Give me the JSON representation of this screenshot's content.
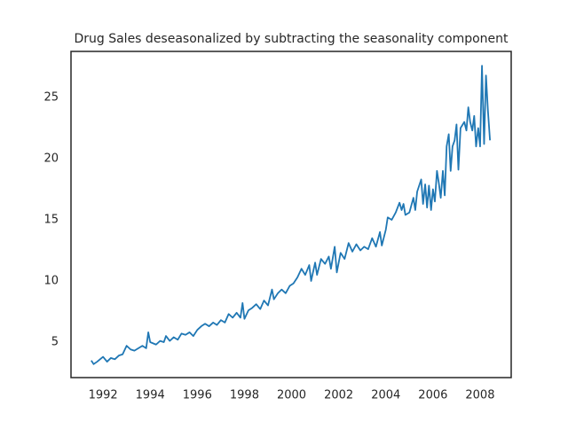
{
  "chart_data": {
    "type": "line",
    "title": "Drug Sales deseasonalized by subtracting the seasonality component",
    "x": [
      1991.5,
      1991.6,
      1991.75,
      1992.0,
      1992.17,
      1992.33,
      1992.5,
      1992.67,
      1992.83,
      1993.0,
      1993.17,
      1993.33,
      1993.5,
      1993.67,
      1993.83,
      1993.92,
      1994.0,
      1994.25,
      1994.42,
      1994.58,
      1994.67,
      1994.83,
      1995.0,
      1995.17,
      1995.33,
      1995.5,
      1995.67,
      1995.83,
      1996.0,
      1996.17,
      1996.33,
      1996.5,
      1996.67,
      1996.83,
      1997.0,
      1997.17,
      1997.33,
      1997.5,
      1997.67,
      1997.83,
      1997.92,
      1998.0,
      1998.17,
      1998.33,
      1998.5,
      1998.67,
      1998.83,
      1999.0,
      1999.17,
      1999.25,
      1999.42,
      1999.58,
      1999.75,
      1999.92,
      2000.08,
      2000.25,
      2000.42,
      2000.58,
      2000.75,
      2000.83,
      2001.0,
      2001.08,
      2001.25,
      2001.42,
      2001.58,
      2001.67,
      2001.83,
      2001.92,
      2002.08,
      2002.25,
      2002.42,
      2002.58,
      2002.75,
      2002.92,
      2003.08,
      2003.25,
      2003.42,
      2003.58,
      2003.75,
      2003.83,
      2004.0,
      2004.08,
      2004.25,
      2004.42,
      2004.58,
      2004.67,
      2004.75,
      2004.83,
      2005.0,
      2005.17,
      2005.25,
      2005.33,
      2005.5,
      2005.58,
      2005.67,
      2005.75,
      2005.83,
      2005.92,
      2006.0,
      2006.08,
      2006.17,
      2006.25,
      2006.33,
      2006.42,
      2006.5,
      2006.58,
      2006.67,
      2006.75,
      2006.83,
      2006.92,
      2007.0,
      2007.08,
      2007.17,
      2007.33,
      2007.42,
      2007.5,
      2007.58,
      2007.67,
      2007.75,
      2007.83,
      2007.92,
      2008.0,
      2008.08,
      2008.17,
      2008.25,
      2008.33,
      2008.42
    ],
    "series": [
      {
        "name": "deseasonalized",
        "color": "#1f77b4",
        "values": [
          3.5,
          3.2,
          3.4,
          3.8,
          3.4,
          3.7,
          3.6,
          3.9,
          4.0,
          4.7,
          4.4,
          4.3,
          4.5,
          4.7,
          4.5,
          5.8,
          5.0,
          4.8,
          5.1,
          5.0,
          5.5,
          5.1,
          5.4,
          5.2,
          5.7,
          5.6,
          5.8,
          5.5,
          6.0,
          6.3,
          6.5,
          6.3,
          6.6,
          6.4,
          6.8,
          6.6,
          7.3,
          7.0,
          7.4,
          7.0,
          8.2,
          6.9,
          7.6,
          7.8,
          8.1,
          7.7,
          8.4,
          8.0,
          9.3,
          8.5,
          9.0,
          9.3,
          9.0,
          9.6,
          9.8,
          10.3,
          11.0,
          10.5,
          11.3,
          10.0,
          11.5,
          10.5,
          11.8,
          11.4,
          12.0,
          11.0,
          12.8,
          10.7,
          12.3,
          11.8,
          13.1,
          12.4,
          13.0,
          12.5,
          12.8,
          12.6,
          13.5,
          12.8,
          14.0,
          12.9,
          14.2,
          15.2,
          15.0,
          15.6,
          16.4,
          15.8,
          16.3,
          15.4,
          15.6,
          16.8,
          15.8,
          17.3,
          18.3,
          16.3,
          17.9,
          16.0,
          17.8,
          15.8,
          17.5,
          16.5,
          19.0,
          18.0,
          16.8,
          19.0,
          17.0,
          21.0,
          22.0,
          19.0,
          21.0,
          21.5,
          22.8,
          19.1,
          22.5,
          23.0,
          22.3,
          24.2,
          23.0,
          22.3,
          23.5,
          21.0,
          22.5,
          21.0,
          27.6,
          21.2,
          26.8,
          24.0,
          21.5
        ]
      }
    ],
    "xlim": [
      1990.64,
      2009.32
    ],
    "xticks": [
      1992,
      1994,
      1996,
      1998,
      2000,
      2002,
      2004,
      2006,
      2008
    ],
    "ylim": [
      2.1,
      28.77
    ],
    "yticks": [
      5,
      10,
      15,
      20,
      25
    ],
    "grid": false
  }
}
